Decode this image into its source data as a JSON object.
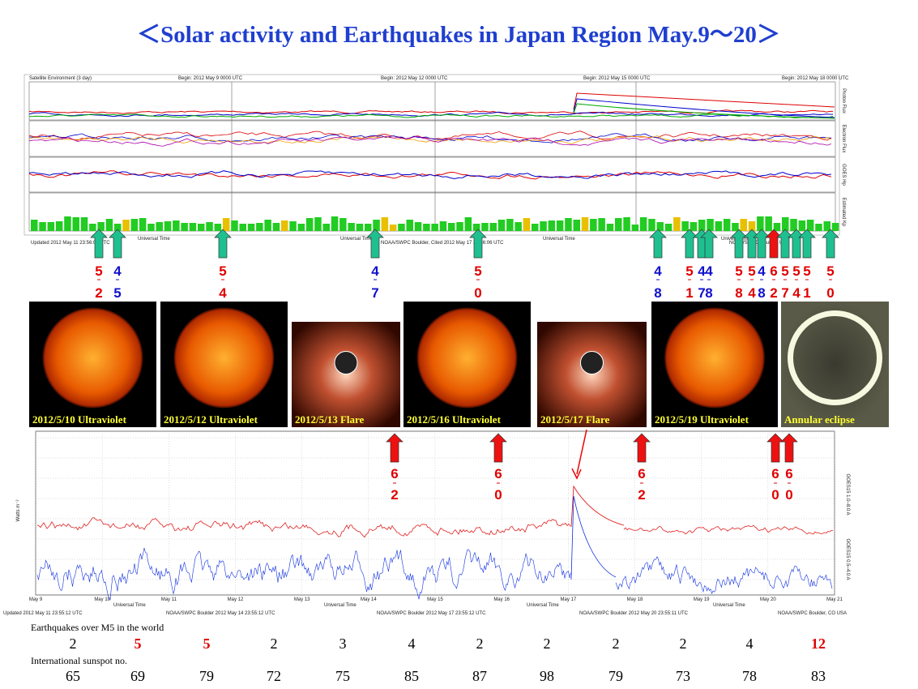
{
  "title": "＜Solar activity and Earthquakes  in Japan Region May.9～20＞",
  "top_panel": {
    "headers": [
      "Satellite Environment (3 day)",
      "Begin:  2012 May 9 0000 UTC",
      "Begin:  2012 May 12 0000 UTC",
      "Begin:  2012 May 15 0000 UTC",
      "Begin:  2012 May 18 0000 UTC"
    ],
    "footers": [
      "Updated 2012 May 11 23:56:06 UTC",
      "NOAA/SWPC Boulder, Cited 2012 May 17 23:56:06 UTC",
      "NOAA/SWPC Boulder, USA"
    ],
    "x_label": "Universal Time",
    "strip_labels": [
      "Proton Flux",
      "Electron Flux",
      "GOES Hp",
      "Estimated Kp"
    ]
  },
  "top_quakes": [
    {
      "top": "5",
      "bottom": "2",
      "color": "red"
    },
    {
      "top": "4",
      "bottom": "5",
      "color": "blue"
    },
    {
      "top": "5",
      "bottom": "4",
      "color": "red"
    },
    {
      "top": "4",
      "bottom": "7",
      "color": "blue"
    },
    {
      "top": "5",
      "bottom": "0",
      "color": "red"
    },
    {
      "top": "4",
      "bottom": "8",
      "color": "blue"
    },
    {
      "top": "5",
      "bottom": "1",
      "color": "red"
    },
    {
      "top": "4",
      "bottom": "7",
      "color": "blue"
    },
    {
      "top": "4",
      "bottom": "8",
      "color": "blue"
    },
    {
      "top": "5",
      "bottom": "8",
      "color": "red"
    },
    {
      "top": "5",
      "bottom": "4",
      "color": "red"
    },
    {
      "top": "4",
      "bottom": "8",
      "color": "blue"
    },
    {
      "top": "6",
      "bottom": "2",
      "color": "red"
    },
    {
      "top": "5",
      "bottom": "7",
      "color": "red"
    },
    {
      "top": "5",
      "bottom": "4",
      "color": "red"
    },
    {
      "top": "5",
      "bottom": "1",
      "color": "red"
    },
    {
      "top": "5",
      "bottom": "0",
      "color": "red"
    }
  ],
  "images": [
    {
      "caption": "2012/5/10 Ultraviolet",
      "kind": "sun"
    },
    {
      "caption": "2012/5/12 Ultraviolet",
      "kind": "sun"
    },
    {
      "caption": "2012/5/13 Flare",
      "kind": "flare"
    },
    {
      "caption": "2012/5/16 Ultraviolet",
      "kind": "sun"
    },
    {
      "caption": "2012/5/17 Flare",
      "kind": "flare"
    },
    {
      "caption": "2012/5/19 Ultraviolet",
      "kind": "sun"
    },
    {
      "caption": "Annular  eclipse",
      "kind": "eclipse"
    }
  ],
  "xray_panel": {
    "y_label": "Watts m⁻²",
    "x_label": "Universal Time",
    "days": [
      "May 9",
      "May 10",
      "May 11",
      "May 12",
      "May 13",
      "May 14",
      "May 15",
      "May 16",
      "May 17",
      "May 18",
      "May 19",
      "May 20",
      "May 21"
    ],
    "series_labels": [
      "GOES15 1.0–8.0 A",
      "GOES15 0.5–4.0 A"
    ],
    "footers": [
      "Updated 2012 May 11 23:55:12 UTC",
      "NOAA/SWPC Boulder 2012 May 14 23:55:12 UTC",
      "NOAA/SWPC Boulder 2012 May 17 23:55:12 UTC",
      "NOAA/SWPC Boulder 2012 May 20 23:55:11 UTC",
      "NOAA/SWPC Boulder, CO USA"
    ]
  },
  "xray_quakes": [
    {
      "top": "6",
      "bottom": "2"
    },
    {
      "top": "6",
      "bottom": "0"
    },
    {
      "top": "6",
      "bottom": "2"
    },
    {
      "top": "6",
      "bottom": "0"
    },
    {
      "top": "6",
      "bottom": "0"
    }
  ],
  "table": {
    "quake_heading": "Earthquakes over M5 in the world",
    "quake_counts": [
      {
        "text": "2",
        "color": "black"
      },
      {
        "text": "5",
        "color": "red"
      },
      {
        "text": "5",
        "color": "red"
      },
      {
        "text": "2",
        "color": "black"
      },
      {
        "text": "3",
        "color": "black"
      },
      {
        "text": "4",
        "color": "black"
      },
      {
        "text": "2",
        "color": "black"
      },
      {
        "text": "2",
        "color": "black"
      },
      {
        "text": "2",
        "color": "black"
      },
      {
        "text": "2",
        "color": "black"
      },
      {
        "text": "4",
        "color": "black"
      },
      {
        "text": "12",
        "color": "red"
      }
    ],
    "sunspot_heading": "International sunspot no.",
    "sunspots": [
      "65",
      "69",
      "79",
      "72",
      "75",
      "85",
      "87",
      "98",
      "79",
      "73",
      "78",
      "83"
    ]
  }
}
